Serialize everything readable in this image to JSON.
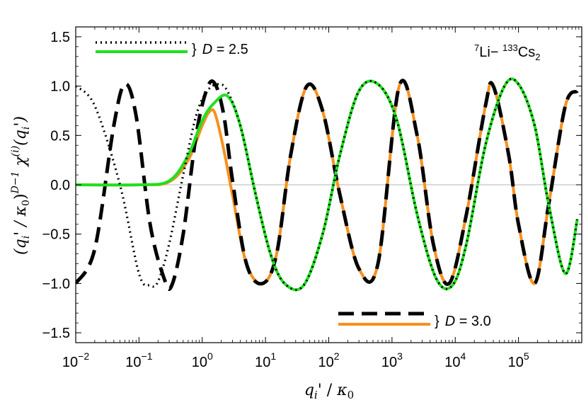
{
  "chart_data": {
    "type": "line",
    "x_scale": "log",
    "xlim": [
      0.01,
      1000000
    ],
    "ylim": [
      -1.6,
      1.6
    ],
    "x_ticks": [
      {
        "value": 0.01,
        "base": "10",
        "exp": "−2"
      },
      {
        "value": 0.1,
        "base": "10",
        "exp": "−1"
      },
      {
        "value": 1,
        "base": "10",
        "exp": "0"
      },
      {
        "value": 10,
        "base": "10",
        "exp": "1"
      },
      {
        "value": 100,
        "base": "10",
        "exp": "2"
      },
      {
        "value": 1000,
        "base": "10",
        "exp": "3"
      },
      {
        "value": 10000,
        "base": "10",
        "exp": "4"
      },
      {
        "value": 100000,
        "base": "10",
        "exp": "5"
      }
    ],
    "y_ticks": [
      {
        "value": 1.5,
        "label": "1.5"
      },
      {
        "value": 1.0,
        "label": "1.0"
      },
      {
        "value": 0.5,
        "label": "0.5"
      },
      {
        "value": 0.0,
        "label": "0.0"
      },
      {
        "value": -0.5,
        "label": "−0.5"
      },
      {
        "value": -1.0,
        "label": "−1.0"
      },
      {
        "value": -1.5,
        "label": "−1.5"
      }
    ],
    "xlabel": {
      "q": "q",
      "sub": "i",
      "prime": "'",
      "sep": " / ",
      "kappa": "κ",
      "kappa_sub": "0"
    },
    "ylabel": {
      "part1": "(q",
      "sub1": "i",
      "part2": "' / κ",
      "sub2": "0",
      "part3": ")",
      "sup1": "D−1",
      "part4": "  χ",
      "sup2": "(i)",
      "part5": "(q",
      "sub3": "i",
      "part6": "')"
    },
    "annotation": {
      "pre": "7",
      "el1": "Li− ",
      "pre2": "133",
      "el2": "Cs",
      "sub": "2"
    },
    "legend": [
      {
        "brace": "}",
        "D": "D",
        "eq": " = 2.5",
        "entries": [
          "D=2.5 dotted",
          "D=2.5 green"
        ]
      },
      {
        "brace": "}",
        "D": "D",
        "eq": " = 3.0",
        "entries": [
          "D=3.0 dashed",
          "D=3.0 orange"
        ]
      }
    ],
    "zero_line": true,
    "series": [
      {
        "id": "d30-orange",
        "style": "solid",
        "color": "#f7901e",
        "x": [
          0.01,
          0.1,
          0.3,
          0.6,
          1.0,
          1.3,
          1.6,
          2.2,
          3,
          5,
          9,
          15,
          25,
          45,
          80,
          150,
          300,
          600,
          1300,
          2500,
          4500,
          8000,
          15000,
          30000,
          40000,
          70000,
          100000,
          180000,
          300000,
          550000,
          850000
        ],
        "y": [
          0.0,
          0.0,
          0.03,
          0.25,
          0.6,
          0.74,
          0.72,
          0.35,
          -0.1,
          -0.8,
          -1.0,
          -0.7,
          0.3,
          1.0,
          0.75,
          -0.1,
          -0.85,
          -0.8,
          1.0,
          0.5,
          -0.6,
          -1.0,
          -0.3,
          0.8,
          1.0,
          0.3,
          -0.4,
          -1.0,
          -0.2,
          0.8,
          0.95
        ]
      },
      {
        "id": "d30-dashed",
        "style": "dashed",
        "color": "#000000",
        "x": [
          0.01,
          0.02,
          0.04,
          0.06,
          0.09,
          0.15,
          0.25,
          0.33,
          0.5,
          0.8,
          1.2,
          1.6,
          2.2,
          3,
          5,
          9,
          15,
          25,
          45,
          80,
          150,
          300,
          600,
          1300,
          2500,
          4500,
          8000,
          15000,
          30000,
          40000,
          70000,
          100000,
          180000,
          300000,
          550000,
          850000
        ],
        "y": [
          -1.0,
          -0.65,
          0.6,
          1.02,
          0.7,
          -0.4,
          -0.95,
          -1.02,
          -0.5,
          0.5,
          0.98,
          1.02,
          0.7,
          0.05,
          -0.8,
          -1.0,
          -0.7,
          0.3,
          1.0,
          0.75,
          -0.1,
          -0.85,
          -0.8,
          1.0,
          0.5,
          -0.6,
          -1.0,
          -0.3,
          0.8,
          1.0,
          0.3,
          -0.4,
          -1.0,
          -0.2,
          0.8,
          0.95
        ]
      },
      {
        "id": "d25-green",
        "style": "solid",
        "color": "#1ee01e",
        "x": [
          0.01,
          0.1,
          0.3,
          0.6,
          1.0,
          1.5,
          2.5,
          4,
          7,
          12,
          20,
          40,
          80,
          150,
          300,
          600,
          1200,
          2500,
          5000,
          9000,
          15000,
          30000,
          60000,
          100000,
          180000,
          300000,
          550000,
          850000
        ],
        "y": [
          0.0,
          0.0,
          0.04,
          0.3,
          0.65,
          0.82,
          0.9,
          0.6,
          -0.1,
          -0.7,
          -1.0,
          -1.02,
          -0.5,
          0.3,
          0.95,
          1.02,
          0.65,
          -0.3,
          -0.95,
          -1.02,
          -0.6,
          0.4,
          1.0,
          1.02,
          0.6,
          -0.2,
          -0.9,
          -0.35
        ]
      },
      {
        "id": "d25-dotted",
        "style": "dotted",
        "color": "#000000",
        "x": [
          0.01,
          0.02,
          0.05,
          0.1,
          0.15,
          0.2,
          0.3,
          0.5,
          0.8,
          1.2,
          1.8,
          2.5,
          4,
          7,
          12,
          20,
          40,
          80,
          150,
          300,
          600,
          1200,
          2500,
          5000,
          9000,
          15000,
          30000,
          60000,
          100000,
          180000,
          300000,
          550000,
          850000
        ],
        "y": [
          1.0,
          0.8,
          0.0,
          -0.9,
          -1.02,
          -0.98,
          -0.6,
          0.1,
          0.7,
          0.95,
          1.02,
          0.95,
          0.6,
          -0.1,
          -0.7,
          -1.0,
          -1.02,
          -0.5,
          0.3,
          0.95,
          1.02,
          0.65,
          -0.3,
          -0.95,
          -1.02,
          -0.6,
          0.4,
          1.0,
          1.02,
          0.6,
          -0.2,
          -0.9,
          -0.35
        ]
      }
    ]
  }
}
